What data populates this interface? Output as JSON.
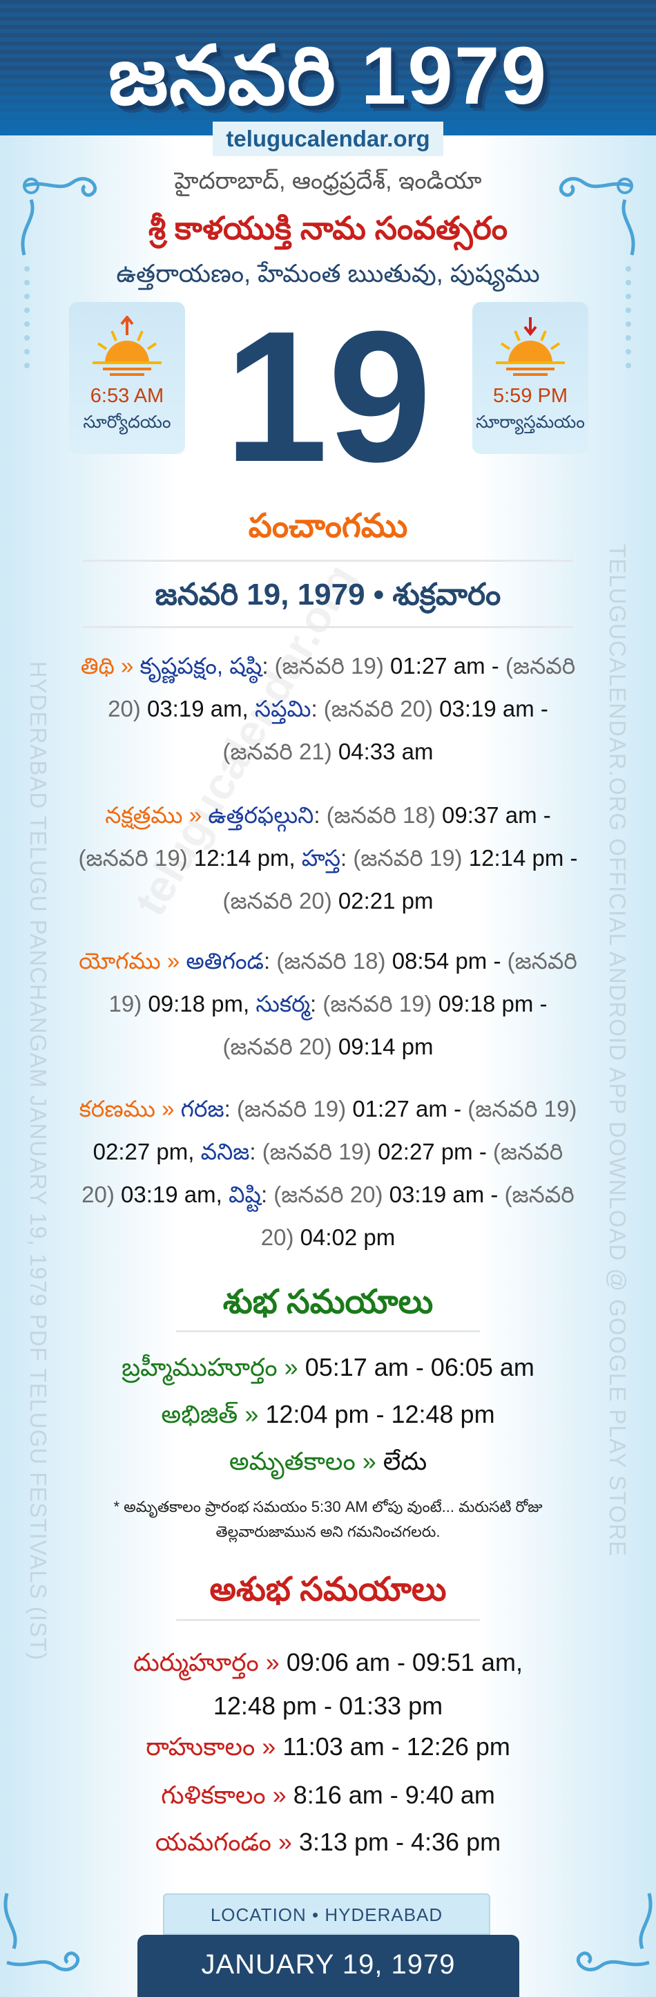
{
  "header": {
    "title": "జనవరి 1979",
    "site": "telugucalendar.org"
  },
  "location": "హైదరాబాద్, ఆంధ్రప్రదేశ్, ఇండియా",
  "samvatsaram": "శ్రీ కాళయుక్తి నామ సంవత్సరం",
  "ayana": "ఉత్తరాయణం, హేమంత ఋతువు, పుష్యము",
  "sunrise": {
    "time": "6:53 AM",
    "label": "సూర్యోదయం"
  },
  "sunset": {
    "time": "5:59 PM",
    "label": "సూర్యాస్తమయం"
  },
  "day": "19",
  "panchangam": {
    "heading": "పంచాంగము",
    "date_line": "జనవరి 19, 1979 • శుక్రవారం",
    "items": [
      {
        "label": "తిథి",
        "arrow": "»",
        "parts": [
          {
            "k": "name",
            "v": "కృష్ణపక్షం, షష్ఠి"
          },
          {
            "k": "sep",
            "v": ":"
          },
          {
            "k": "date",
            "v": "(జనవరి 19)"
          },
          {
            "k": "time",
            "v": "01:27 am -"
          },
          {
            "k": "date",
            "v": "(జనవరి 20)"
          },
          {
            "k": "time",
            "v": "03:19 am,"
          },
          {
            "k": "name",
            "v": "సప్తమి"
          },
          {
            "k": "sep",
            "v": ":"
          },
          {
            "k": "date",
            "v": "(జనవరి 20)"
          },
          {
            "k": "time",
            "v": "03:19 am -"
          },
          {
            "k": "date",
            "v": "(జనవరి 21)"
          },
          {
            "k": "time",
            "v": "04:33 am"
          }
        ]
      },
      {
        "label": "నక్షత్రము",
        "arrow": "»",
        "parts": [
          {
            "k": "name",
            "v": "ఉత్తరఫల్గుని"
          },
          {
            "k": "sep",
            "v": ":"
          },
          {
            "k": "date",
            "v": "(జనవరి 18)"
          },
          {
            "k": "time",
            "v": "09:37 am -"
          },
          {
            "k": "date",
            "v": "(జనవరి 19)"
          },
          {
            "k": "time",
            "v": "12:14 pm,"
          },
          {
            "k": "name",
            "v": "హస్త"
          },
          {
            "k": "sep",
            "v": ":"
          },
          {
            "k": "date",
            "v": "(జనవరి 19)"
          },
          {
            "k": "time",
            "v": "12:14 pm -"
          },
          {
            "k": "date",
            "v": "(జనవరి 20)"
          },
          {
            "k": "time",
            "v": "02:21 pm"
          }
        ]
      },
      {
        "label": "యోగము",
        "arrow": "»",
        "parts": [
          {
            "k": "name",
            "v": "అతిగండ"
          },
          {
            "k": "sep",
            "v": ":"
          },
          {
            "k": "date",
            "v": "(జనవరి 18)"
          },
          {
            "k": "time",
            "v": "08:54 pm -"
          },
          {
            "k": "date",
            "v": "(జనవరి 19)"
          },
          {
            "k": "time",
            "v": "09:18 pm,"
          },
          {
            "k": "name",
            "v": "సుకర్మ"
          },
          {
            "k": "sep",
            "v": ":"
          },
          {
            "k": "date",
            "v": "(జనవరి 19)"
          },
          {
            "k": "time",
            "v": "09:18 pm -"
          },
          {
            "k": "date",
            "v": "(జనవరి 20)"
          },
          {
            "k": "time",
            "v": "09:14 pm"
          }
        ]
      },
      {
        "label": "కరణము",
        "arrow": "»",
        "parts": [
          {
            "k": "name",
            "v": "గరజ"
          },
          {
            "k": "sep",
            "v": ":"
          },
          {
            "k": "date",
            "v": "(జనవరి 19)"
          },
          {
            "k": "time",
            "v": "01:27 am -"
          },
          {
            "k": "date",
            "v": "(జనవరి 19)"
          },
          {
            "k": "time",
            "v": "02:27 pm,"
          },
          {
            "k": "name",
            "v": "వనిజ"
          },
          {
            "k": "sep",
            "v": ":"
          },
          {
            "k": "date",
            "v": "(జనవరి 19)"
          },
          {
            "k": "time",
            "v": "02:27 pm -"
          },
          {
            "k": "date",
            "v": "(జనవరి 20)"
          },
          {
            "k": "time",
            "v": "03:19 am,"
          },
          {
            "k": "name",
            "v": "విష్టి"
          },
          {
            "k": "sep",
            "v": ":"
          },
          {
            "k": "date",
            "v": "(జనవరి 20)"
          },
          {
            "k": "time",
            "v": "03:19 am -"
          },
          {
            "k": "date",
            "v": "(జనవరి 20)"
          },
          {
            "k": "time",
            "v": "04:02 pm"
          }
        ]
      }
    ]
  },
  "shubha": {
    "heading": "శుభ సమయాలు",
    "rows": [
      {
        "label": "బ్రహ్మీముహూర్తం",
        "arrow": "»",
        "value": "05:17 am - 06:05 am"
      },
      {
        "label": "అభిజిత్",
        "arrow": "»",
        "value": "12:04 pm - 12:48 pm"
      },
      {
        "label": "అమృతకాలం",
        "arrow": "»",
        "value": "లేదు"
      }
    ],
    "note": "* అమృతకాలం ప్రారంభ సమయం 5:30 AM లోపు వుంటే... మరుసటి రోజు తెల్లవారుజామున అని గమనించగలరు."
  },
  "ashubha": {
    "heading": "అశుభ సమయాలు",
    "durmuhurtham": {
      "label": "దుర్ముహూర్తం",
      "arrow": "»",
      "value1": "09:06 am - 09:51 am,",
      "value2": "12:48 pm - 01:33 pm"
    },
    "rows": [
      {
        "label": "రాహుకాలం",
        "arrow": "»",
        "value": "11:03 am - 12:26 pm"
      },
      {
        "label": "గుళికకాలం",
        "arrow": "»",
        "value": "8:16 am - 9:40 am"
      },
      {
        "label": "యమగండం",
        "arrow": "»",
        "value": "3:13 pm - 4:36 pm"
      }
    ]
  },
  "side_left": "HYDERABAD TELUGU PANCHANGAM JANUARY 19, 1979 PDF TELUGU FESTIVALS (IST)",
  "side_right": "TELUGUCALENDAR.ORG OFFICIAL ANDROID APP DOWNLOAD @ GOOGLE PLAY STORE",
  "watermark": "telugucalendar.org",
  "footer": {
    "location": "LOCATION • HYDERABAD",
    "date": "JANUARY 19, 1979"
  },
  "colors": {
    "header": "#1d5a91",
    "accent_orange": "#f06a10",
    "name_blue": "#1a3d9c",
    "navy": "#21476e",
    "green": "#1b7a1b",
    "red": "#c8201c"
  }
}
